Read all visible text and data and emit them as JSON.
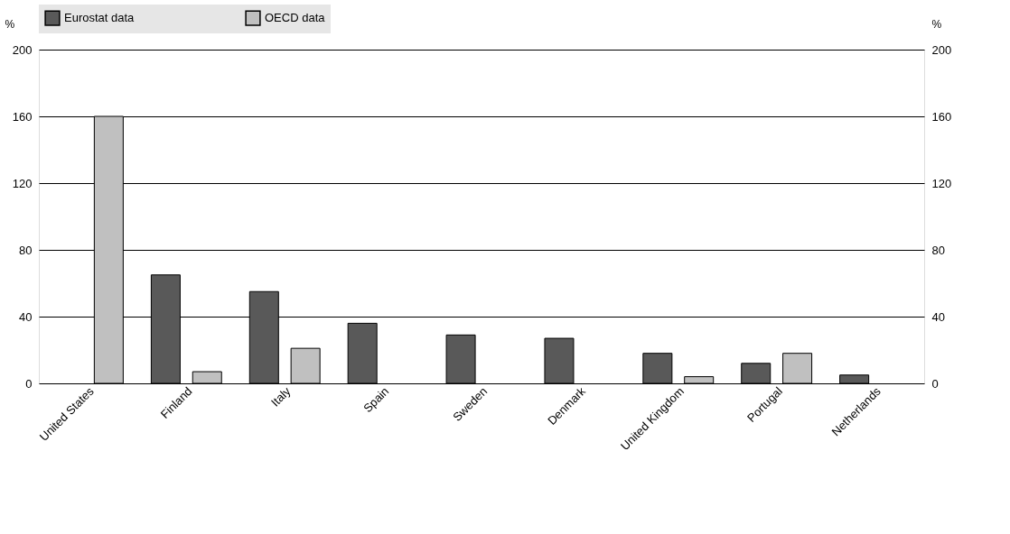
{
  "chart_data": {
    "type": "bar",
    "categories": [
      "United States",
      "Finland",
      "Italy",
      "Spain",
      "Sweden",
      "Denmark",
      "United Kingdom",
      "Portugal",
      "Netherlands"
    ],
    "series": [
      {
        "name": "Eurostat data",
        "color": "#595959",
        "values": [
          null,
          65,
          55,
          36,
          29,
          27,
          18,
          12,
          5
        ]
      },
      {
        "name": "OECD data",
        "color": "#c0c0c0",
        "values": [
          160,
          7,
          21,
          null,
          null,
          null,
          4,
          18,
          null
        ]
      }
    ],
    "ylabel": "%",
    "ylim": [
      0,
      200
    ],
    "yticks": [
      0,
      40,
      80,
      120,
      160,
      200
    ],
    "y2label": "%",
    "y2lim": [
      0,
      200
    ],
    "y2ticks": [
      0,
      40,
      80,
      120,
      160,
      200
    ],
    "grid": "y",
    "legend": "top"
  }
}
